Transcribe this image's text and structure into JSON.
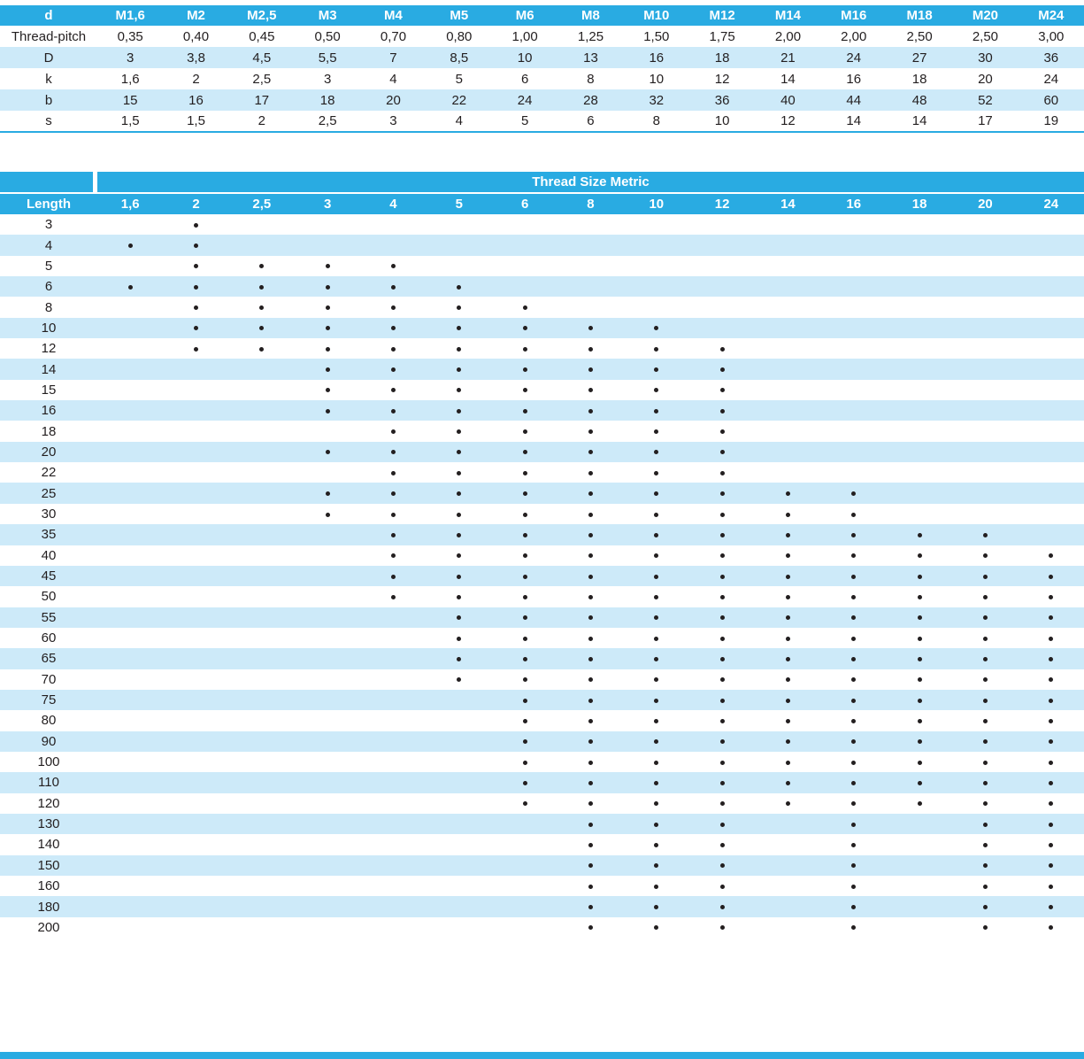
{
  "colors": {
    "header_bg": "#29abe2",
    "stripe_bg": "#cdeaf9",
    "header_text": "#ffffff",
    "body_text": "#231f20",
    "dot": "#231f20"
  },
  "dimensions_table": {
    "corner_label": "d",
    "columns": [
      "M1,6",
      "M2",
      "M2,5",
      "M3",
      "M4",
      "M5",
      "M6",
      "M8",
      "M10",
      "M12",
      "M14",
      "M16",
      "M18",
      "M20",
      "M24"
    ],
    "rows": [
      {
        "label": "Thread-pitch",
        "values": [
          "0,35",
          "0,40",
          "0,45",
          "0,50",
          "0,70",
          "0,80",
          "1,00",
          "1,25",
          "1,50",
          "1,75",
          "2,00",
          "2,00",
          "2,50",
          "2,50",
          "3,00"
        ]
      },
      {
        "label": "D",
        "values": [
          "3",
          "3,8",
          "4,5",
          "5,5",
          "7",
          "8,5",
          "10",
          "13",
          "16",
          "18",
          "21",
          "24",
          "27",
          "30",
          "36"
        ]
      },
      {
        "label": "k",
        "values": [
          "1,6",
          "2",
          "2,5",
          "3",
          "4",
          "5",
          "6",
          "8",
          "10",
          "12",
          "14",
          "16",
          "18",
          "20",
          "24"
        ]
      },
      {
        "label": "b",
        "values": [
          "15",
          "16",
          "17",
          "18",
          "20",
          "22",
          "24",
          "28",
          "32",
          "36",
          "40",
          "44",
          "48",
          "52",
          "60"
        ]
      },
      {
        "label": "s",
        "values": [
          "1,5",
          "1,5",
          "2",
          "2,5",
          "3",
          "4",
          "5",
          "6",
          "8",
          "10",
          "12",
          "14",
          "14",
          "17",
          "19"
        ]
      }
    ]
  },
  "availability_table": {
    "title": "Thread Size Metric",
    "length_label": "Length",
    "size_columns": [
      "1,6",
      "2",
      "2,5",
      "3",
      "4",
      "5",
      "6",
      "8",
      "10",
      "12",
      "14",
      "16",
      "18",
      "20",
      "24"
    ],
    "rows": [
      {
        "length": "3",
        "available": [
          "2"
        ]
      },
      {
        "length": "4",
        "available": [
          "1,6",
          "2"
        ]
      },
      {
        "length": "5",
        "available": [
          "2",
          "2,5",
          "3",
          "4"
        ]
      },
      {
        "length": "6",
        "available": [
          "1,6",
          "2",
          "2,5",
          "3",
          "4",
          "5"
        ]
      },
      {
        "length": "8",
        "available": [
          "2",
          "2,5",
          "3",
          "4",
          "5",
          "6"
        ]
      },
      {
        "length": "10",
        "available": [
          "2",
          "2,5",
          "3",
          "4",
          "5",
          "6",
          "8",
          "10"
        ]
      },
      {
        "length": "12",
        "available": [
          "2",
          "2,5",
          "3",
          "4",
          "5",
          "6",
          "8",
          "10",
          "12"
        ]
      },
      {
        "length": "14",
        "available": [
          "3",
          "4",
          "5",
          "6",
          "8",
          "10",
          "12"
        ]
      },
      {
        "length": "15",
        "available": [
          "3",
          "4",
          "5",
          "6",
          "8",
          "10",
          "12"
        ]
      },
      {
        "length": "16",
        "available": [
          "3",
          "4",
          "5",
          "6",
          "8",
          "10",
          "12"
        ]
      },
      {
        "length": "18",
        "available": [
          "4",
          "5",
          "6",
          "8",
          "10",
          "12"
        ]
      },
      {
        "length": "20",
        "available": [
          "3",
          "4",
          "5",
          "6",
          "8",
          "10",
          "12"
        ]
      },
      {
        "length": "22",
        "available": [
          "4",
          "5",
          "6",
          "8",
          "10",
          "12"
        ]
      },
      {
        "length": "25",
        "available": [
          "3",
          "4",
          "5",
          "6",
          "8",
          "10",
          "12",
          "14",
          "16"
        ]
      },
      {
        "length": "30",
        "available": [
          "3",
          "4",
          "5",
          "6",
          "8",
          "10",
          "12",
          "14",
          "16"
        ]
      },
      {
        "length": "35",
        "available": [
          "4",
          "5",
          "6",
          "8",
          "10",
          "12",
          "14",
          "16",
          "18",
          "20"
        ]
      },
      {
        "length": "40",
        "available": [
          "4",
          "5",
          "6",
          "8",
          "10",
          "12",
          "14",
          "16",
          "18",
          "20",
          "24"
        ]
      },
      {
        "length": "45",
        "available": [
          "4",
          "5",
          "6",
          "8",
          "10",
          "12",
          "14",
          "16",
          "18",
          "20",
          "24"
        ]
      },
      {
        "length": "50",
        "available": [
          "4",
          "5",
          "6",
          "8",
          "10",
          "12",
          "14",
          "16",
          "18",
          "20",
          "24"
        ]
      },
      {
        "length": "55",
        "available": [
          "5",
          "6",
          "8",
          "10",
          "12",
          "14",
          "16",
          "18",
          "20",
          "24"
        ]
      },
      {
        "length": "60",
        "available": [
          "5",
          "6",
          "8",
          "10",
          "12",
          "14",
          "16",
          "18",
          "20",
          "24"
        ]
      },
      {
        "length": "65",
        "available": [
          "5",
          "6",
          "8",
          "10",
          "12",
          "14",
          "16",
          "18",
          "20",
          "24"
        ]
      },
      {
        "length": "70",
        "available": [
          "5",
          "6",
          "8",
          "10",
          "12",
          "14",
          "16",
          "18",
          "20",
          "24"
        ]
      },
      {
        "length": "75",
        "available": [
          "6",
          "8",
          "10",
          "12",
          "14",
          "16",
          "18",
          "20",
          "24"
        ]
      },
      {
        "length": "80",
        "available": [
          "6",
          "8",
          "10",
          "12",
          "14",
          "16",
          "18",
          "20",
          "24"
        ]
      },
      {
        "length": "90",
        "available": [
          "6",
          "8",
          "10",
          "12",
          "14",
          "16",
          "18",
          "20",
          "24"
        ]
      },
      {
        "length": "100",
        "available": [
          "6",
          "8",
          "10",
          "12",
          "14",
          "16",
          "18",
          "20",
          "24"
        ]
      },
      {
        "length": "110",
        "available": [
          "6",
          "8",
          "10",
          "12",
          "14",
          "16",
          "18",
          "20",
          "24"
        ]
      },
      {
        "length": "120",
        "available": [
          "6",
          "8",
          "10",
          "12",
          "14",
          "16",
          "18",
          "20",
          "24"
        ]
      },
      {
        "length": "130",
        "available": [
          "8",
          "10",
          "12",
          "16",
          "20",
          "24"
        ]
      },
      {
        "length": "140",
        "available": [
          "8",
          "10",
          "12",
          "16",
          "20",
          "24"
        ]
      },
      {
        "length": "150",
        "available": [
          "8",
          "10",
          "12",
          "16",
          "20",
          "24"
        ]
      },
      {
        "length": "160",
        "available": [
          "8",
          "10",
          "12",
          "16",
          "20",
          "24"
        ]
      },
      {
        "length": "180",
        "available": [
          "8",
          "10",
          "12",
          "16",
          "20",
          "24"
        ]
      },
      {
        "length": "200",
        "available": [
          "8",
          "10",
          "12",
          "16",
          "20",
          "24"
        ]
      }
    ]
  }
}
